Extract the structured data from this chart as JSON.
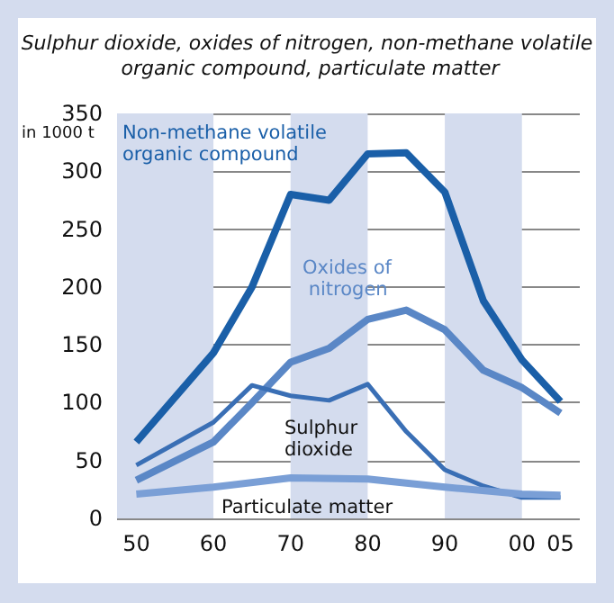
{
  "chart_data": {
    "type": "line",
    "title": "Sulphur dioxide, oxides of nitrogen, non-methane volatile organic compound, particulate matter",
    "ylabel": "in 1000 t",
    "xlim": [
      1947.5,
      2007.5
    ],
    "xticks": [
      {
        "value": 1950,
        "label": "50"
      },
      {
        "value": 1960,
        "label": "60"
      },
      {
        "value": 1970,
        "label": "70"
      },
      {
        "value": 1980,
        "label": "80"
      },
      {
        "value": 1990,
        "label": "90"
      },
      {
        "value": 2000,
        "label": "00"
      },
      {
        "value": 2005,
        "label": "05"
      }
    ],
    "ylim": [
      0,
      350
    ],
    "yticks": [
      0,
      50,
      100,
      150,
      200,
      250,
      300,
      350
    ],
    "grid": "y",
    "legend": false,
    "marker": "none",
    "bands": [
      {
        "axis": "x",
        "from": 1947.5,
        "to": 1960,
        "color": "#d4dcee"
      },
      {
        "axis": "x",
        "from": 1970,
        "to": 1980,
        "color": "#d4dcee"
      },
      {
        "axis": "x",
        "from": 1990,
        "to": 2000,
        "color": "#d4dcee"
      }
    ],
    "series": [
      {
        "name": "Non-methane volatile organic compound",
        "color": "#1a5fa8",
        "x": [
          1950,
          1960,
          1965,
          1970,
          1975,
          1980,
          1985,
          1990,
          1995,
          2000,
          2005
        ],
        "values": [
          66,
          143,
          200,
          280,
          275,
          315,
          316,
          282,
          188,
          137,
          101
        ]
      },
      {
        "name": "Oxides of nitrogen",
        "color": "#5a87c6",
        "x": [
          1950,
          1960,
          1965,
          1970,
          1975,
          1980,
          1985,
          1990,
          1995,
          2000,
          2005
        ],
        "values": [
          33,
          66,
          100,
          135,
          147,
          172,
          180,
          163,
          128,
          113,
          91
        ]
      },
      {
        "name": "Sulphur dioxide",
        "color": "#3a6fb5",
        "x": [
          1950,
          1960,
          1965,
          1970,
          1975,
          1980,
          1985,
          1990,
          1995,
          2000,
          2005
        ],
        "values": [
          46,
          83,
          115,
          106,
          102,
          116,
          75,
          42,
          28,
          18,
          18
        ]
      },
      {
        "name": "Particulate matter",
        "color": "#7a9fd6",
        "x": [
          1950,
          1960,
          1970,
          1980,
          1990,
          2000,
          2005
        ],
        "values": [
          21,
          27,
          35,
          34,
          27,
          21,
          20
        ]
      }
    ]
  }
}
